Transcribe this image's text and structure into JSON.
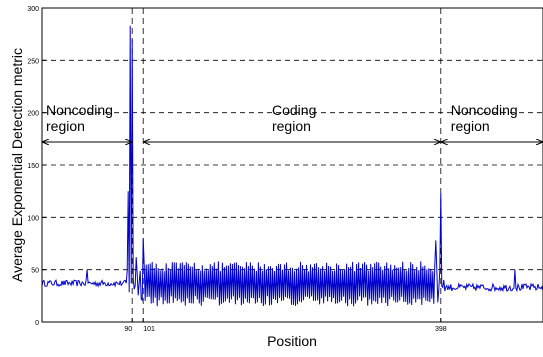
{
  "chart_data": {
    "type": "line",
    "xlabel": "Position",
    "ylabel": "Average Exponential Detection metric",
    "ylim": [
      0,
      300
    ],
    "yticks": [
      0,
      50,
      100,
      150,
      200,
      250,
      300
    ],
    "xlim": [
      0,
      500
    ],
    "x_tick_labels": [
      {
        "x": 90,
        "label": "90"
      },
      {
        "x": 101,
        "label": "101"
      },
      {
        "x": 398,
        "label": "398"
      }
    ],
    "vertical_markers": [
      90,
      101,
      398
    ],
    "grid": "horizontal dashed at y ticks",
    "regions": [
      {
        "label_lines": [
          "Noncoding",
          "region"
        ],
        "from": 0,
        "to": 90
      },
      {
        "label_lines": [
          "Coding",
          "region"
        ],
        "from": 101,
        "to": 398
      },
      {
        "label_lines": [
          "Noncoding",
          "region"
        ],
        "from": 398,
        "to": 500
      }
    ],
    "spikes": [
      {
        "x": 86,
        "y": 125
      },
      {
        "x": 88,
        "y": 283
      },
      {
        "x": 90,
        "y": 270
      },
      {
        "x": 94,
        "y": 62
      },
      {
        "x": 101,
        "y": 80
      },
      {
        "x": 398,
        "y": 123
      },
      {
        "x": 393,
        "y": 78
      },
      {
        "x": 45,
        "y": 50
      },
      {
        "x": 472,
        "y": 50
      }
    ],
    "baseline": {
      "noncoding_mean": 37,
      "coding_min": 15,
      "coding_max": 58,
      "right_noncoding_mean": 33
    },
    "series_color": "#0000cc"
  }
}
